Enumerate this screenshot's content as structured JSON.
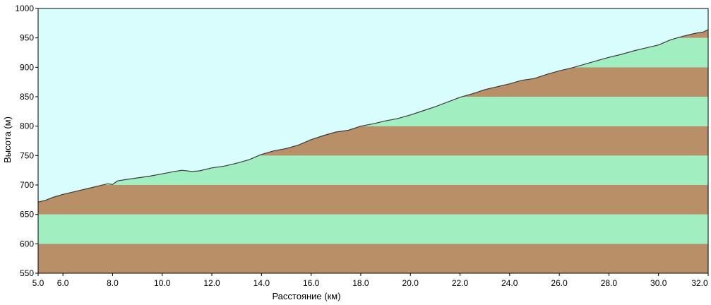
{
  "chart_data": {
    "type": "area",
    "xlabel": "Расстояние   (км)",
    "ylabel": "Высота (м)",
    "xlim": [
      5.0,
      32.0
    ],
    "ylim": [
      550,
      1000
    ],
    "x_ticks": [
      "5.0",
      "6.0",
      "8.0",
      "10.0",
      "12.0",
      "14.0",
      "16.0",
      "18.0",
      "20.0",
      "22.0",
      "24.0",
      "26.0",
      "28.0",
      "30.0",
      "32.0"
    ],
    "y_ticks": [
      "550",
      "600",
      "650",
      "700",
      "750",
      "800",
      "850",
      "900",
      "950",
      "1000"
    ],
    "band_step": 50,
    "colors": {
      "sky": "#d9fdfd",
      "band_brown": "#b98f67",
      "band_green": "#a1eec0",
      "line": "#3a3a3a",
      "border": "#000000"
    },
    "series": [
      {
        "x": [
          5.0,
          5.3,
          5.6,
          6.0,
          6.5,
          7.0,
          7.5,
          7.8,
          8.0,
          8.2,
          8.5,
          9.0,
          9.5,
          10.0,
          10.5,
          10.8,
          11.2,
          11.5,
          12.0,
          12.5,
          13.0,
          13.5,
          14.0,
          14.5,
          15.0,
          15.5,
          16.0,
          16.5,
          17.0,
          17.5,
          18.0,
          18.5,
          19.0,
          19.5,
          20.0,
          20.5,
          21.0,
          21.5,
          22.0,
          22.5,
          23.0,
          23.5,
          24.0,
          24.5,
          25.0,
          25.5,
          26.0,
          26.5,
          27.0,
          27.5,
          28.0,
          28.5,
          29.0,
          29.5,
          30.0,
          30.5,
          31.0,
          31.5,
          31.8,
          32.0
        ],
        "y": [
          671,
          674,
          679,
          684,
          689,
          694,
          699,
          702,
          701,
          707,
          709,
          712,
          715,
          719,
          723,
          725,
          723,
          724,
          729,
          732,
          737,
          743,
          752,
          758,
          762,
          768,
          777,
          784,
          790,
          793,
          800,
          804,
          809,
          813,
          819,
          826,
          833,
          841,
          849,
          855,
          862,
          867,
          872,
          878,
          881,
          888,
          894,
          899,
          905,
          911,
          917,
          922,
          928,
          933,
          938,
          947,
          953,
          958,
          960,
          964
        ]
      }
    ]
  }
}
